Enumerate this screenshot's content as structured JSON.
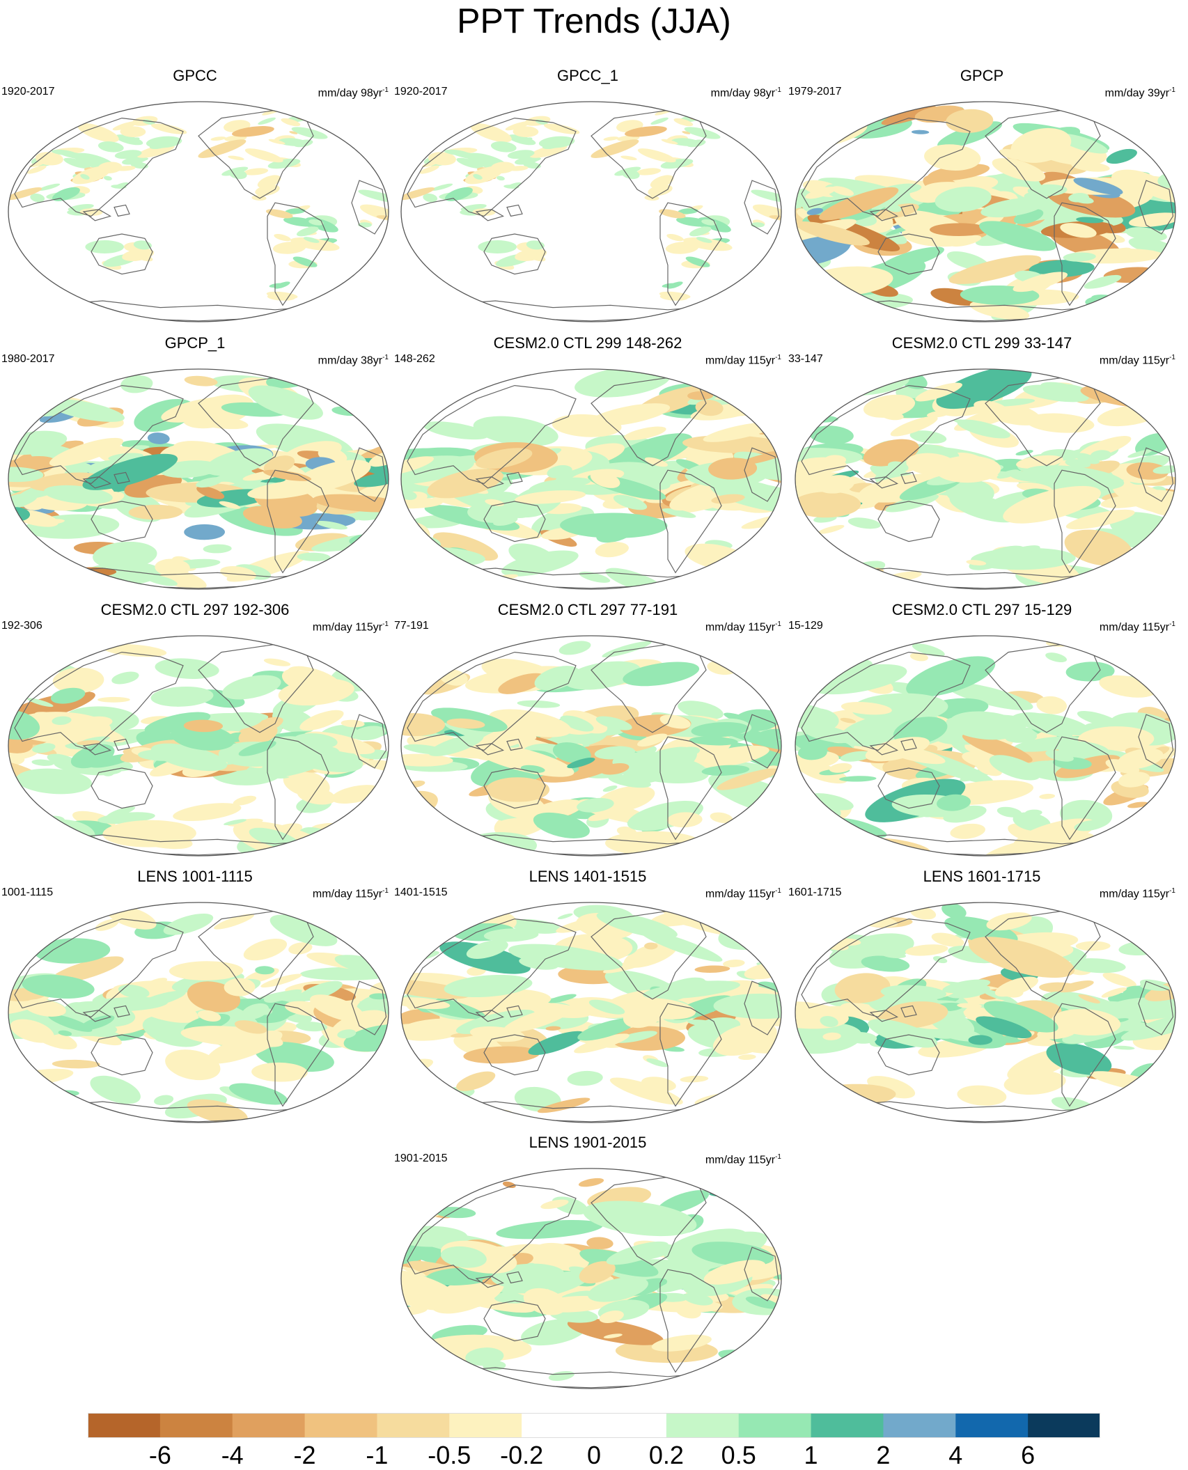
{
  "title": "PPT Trends (JJA)",
  "panels": [
    {
      "title": "GPCC",
      "period": "1920-2017",
      "units": "mm/day 98yr",
      "units_exp": "-1",
      "seed": 3,
      "intensity": 0.55,
      "coverage": "land"
    },
    {
      "title": "GPCC_1",
      "period": "1920-2017",
      "units": "mm/day 98yr",
      "units_exp": "-1",
      "seed": 3,
      "intensity": 0.55,
      "coverage": "land"
    },
    {
      "title": "GPCP",
      "period": "1979-2017",
      "units": "mm/day 39yr",
      "units_exp": "-1",
      "seed": 7,
      "intensity": 1.0,
      "coverage": "global"
    },
    {
      "title": "GPCP_1",
      "period": "1980-2017",
      "units": "mm/day 38yr",
      "units_exp": "-1",
      "seed": 8,
      "intensity": 1.0,
      "coverage": "global"
    },
    {
      "title": "CESM2.0 CTL 299 148-262",
      "period": "148-262",
      "units": "mm/day 115yr",
      "units_exp": "-1",
      "seed": 11,
      "intensity": 0.7,
      "coverage": "global"
    },
    {
      "title": "CESM2.0 CTL 299 33-147",
      "period": "33-147",
      "units": "mm/day 115yr",
      "units_exp": "-1",
      "seed": 13,
      "intensity": 0.7,
      "coverage": "global"
    },
    {
      "title": "CESM2.0 CTL 297 192-306",
      "period": "192-306",
      "units": "mm/day 115yr",
      "units_exp": "-1",
      "seed": 17,
      "intensity": 0.7,
      "coverage": "global"
    },
    {
      "title": "CESM2.0 CTL 297 77-191",
      "period": "77-191",
      "units": "mm/day 115yr",
      "units_exp": "-1",
      "seed": 19,
      "intensity": 0.7,
      "coverage": "global"
    },
    {
      "title": "CESM2.0 CTL 297 15-129",
      "period": "15-129",
      "units": "mm/day 115yr",
      "units_exp": "-1",
      "seed": 23,
      "intensity": 0.7,
      "coverage": "global"
    },
    {
      "title": "LENS 1001-1115",
      "period": "1001-1115",
      "units": "mm/day 115yr",
      "units_exp": "-1",
      "seed": 29,
      "intensity": 0.7,
      "coverage": "global"
    },
    {
      "title": "LENS 1401-1515",
      "period": "1401-1515",
      "units": "mm/day 115yr",
      "units_exp": "-1",
      "seed": 31,
      "intensity": 0.7,
      "coverage": "global"
    },
    {
      "title": "LENS 1601-1715",
      "period": "1601-1715",
      "units": "mm/day 115yr",
      "units_exp": "-1",
      "seed": 37,
      "intensity": 0.7,
      "coverage": "global"
    },
    {
      "title": "LENS 1901-2015",
      "period": "1901-2015",
      "units": "mm/day 115yr",
      "units_exp": "-1",
      "seed": 41,
      "intensity": 0.75,
      "coverage": "global"
    }
  ],
  "colorbar": {
    "labels": [
      "-6",
      "-4",
      "-2",
      "-1",
      "-0.5",
      "-0.2",
      "0",
      "0.2",
      "0.5",
      "1",
      "2",
      "4",
      "6"
    ],
    "colors": [
      "#b5652a",
      "#cc8340",
      "#e0a05e",
      "#f0c27f",
      "#f6dc9e",
      "#fdf2bf",
      "#ffffff",
      "#ffffff",
      "#c6f7c8",
      "#96e8b3",
      "#4fbd9b",
      "#72a9cb",
      "#1268ad",
      "#0b3a5c"
    ]
  }
}
